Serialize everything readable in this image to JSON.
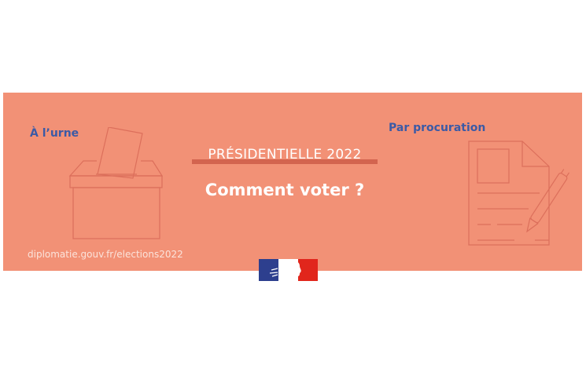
{
  "banner": {
    "left_label": "À l’urne",
    "right_label": "Par procuration",
    "tag": "PRÉSIDENTIELLE 2022",
    "title": "Comment voter ?",
    "url": "diplomatie.gouv.fr/elections2022"
  },
  "colors": {
    "background": "#f29176",
    "accent_blue": "#3b5aa6",
    "line": "#dc6f5b"
  },
  "icons": {
    "left": "ballot-box-icon",
    "right": "proxy-form-pen-icon",
    "logo": "marianne-logo"
  }
}
